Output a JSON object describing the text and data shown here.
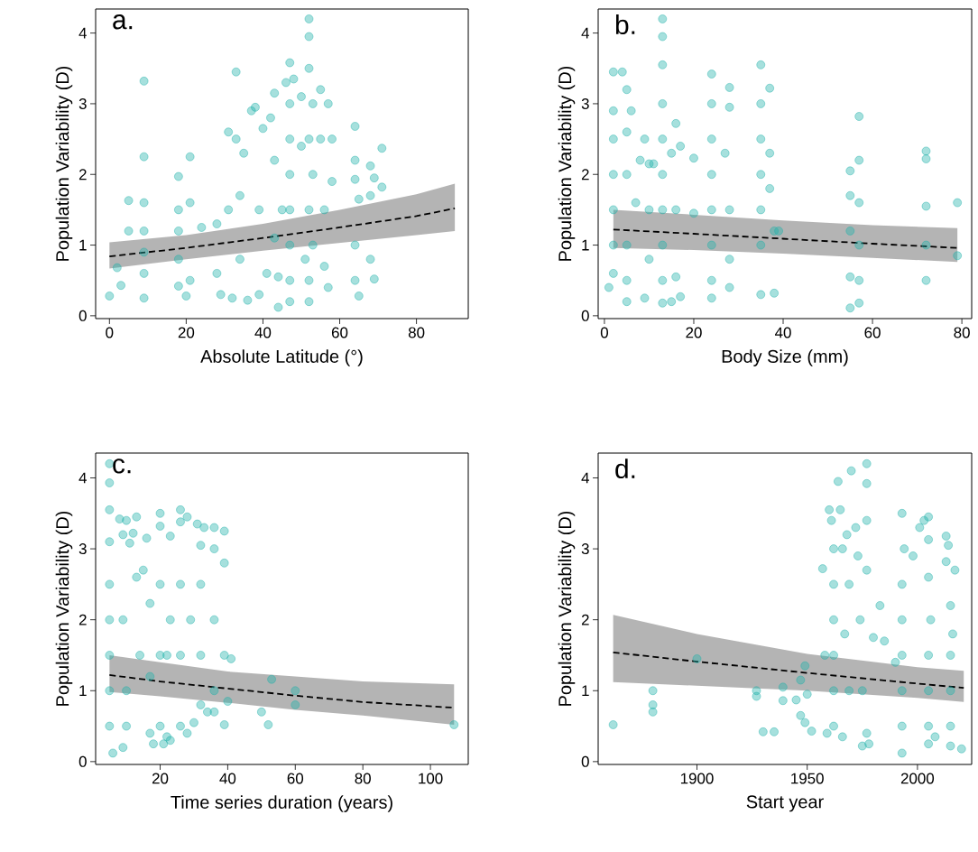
{
  "chart_data": [
    {
      "type": "scatter",
      "title": "a.",
      "xlabel": "Absolute Latitude (°)",
      "ylabel": "Population Variability (D)",
      "xlim": [
        -3.6,
        93.5
      ],
      "ylim": [
        -0.04,
        4.34
      ],
      "xticks": [
        0,
        20,
        40,
        60,
        80
      ],
      "yticks": [
        0,
        1,
        2,
        3,
        4
      ],
      "series": [
        {
          "color": "#20b2aa",
          "x": [
            0,
            2,
            3,
            5,
            5,
            9,
            9,
            9,
            9,
            9,
            9,
            9,
            18,
            18,
            18,
            18,
            18,
            20,
            21,
            21,
            21,
            24,
            28,
            28,
            29,
            31,
            31,
            32,
            33,
            33,
            34,
            34,
            35,
            36,
            37,
            38,
            39,
            39,
            40,
            41,
            42,
            43,
            43,
            43,
            44,
            44,
            45,
            46,
            47,
            47,
            47,
            47,
            47,
            47,
            47,
            47,
            48,
            50,
            50,
            51,
            52,
            52,
            52,
            53,
            52,
            53,
            52,
            53,
            52,
            52,
            55,
            55,
            56,
            56,
            57,
            57,
            58,
            58,
            64,
            64,
            64,
            64,
            64,
            65,
            65,
            68,
            68,
            68,
            69,
            69,
            71,
            71
          ],
          "values": [
            0.28,
            0.68,
            0.43,
            1.63,
            1.2,
            3.32,
            2.25,
            1.6,
            1.2,
            0.9,
            0.6,
            0.25,
            1.97,
            1.5,
            1.2,
            0.8,
            0.42,
            0.28,
            2.25,
            1.6,
            0.5,
            1.25,
            1.3,
            0.6,
            0.3,
            2.6,
            1.5,
            0.25,
            3.45,
            2.5,
            1.7,
            0.8,
            2.3,
            0.22,
            2.9,
            2.95,
            1.5,
            0.3,
            2.65,
            0.6,
            2.8,
            3.15,
            2.2,
            1.1,
            0.55,
            0.12,
            1.5,
            3.3,
            3.58,
            3.0,
            2.5,
            2.0,
            1.5,
            1.0,
            0.5,
            0.2,
            3.35,
            3.1,
            2.4,
            0.8,
            4.2,
            3.95,
            3.5,
            3.0,
            2.5,
            2.0,
            1.5,
            1.0,
            0.5,
            0.2,
            3.2,
            2.5,
            1.5,
            0.7,
            3.0,
            0.4,
            2.5,
            1.9,
            2.68,
            2.2,
            1.93,
            1.0,
            0.5,
            0.28,
            1.65,
            2.12,
            1.7,
            0.8,
            1.95,
            0.52,
            2.37,
            1.82
          ]
        },
        {
          "type": "line",
          "color": "#000000",
          "line_style": "dashed",
          "marker": "none",
          "x": [
            0,
            20,
            40,
            60,
            80,
            90
          ],
          "values": [
            0.84,
            0.96,
            1.1,
            1.25,
            1.41,
            1.52
          ],
          "lower": [
            0.67,
            0.8,
            0.92,
            1.03,
            1.14,
            1.2
          ],
          "upper": [
            1.04,
            1.14,
            1.3,
            1.5,
            1.72,
            1.87
          ]
        }
      ]
    },
    {
      "type": "scatter",
      "title": "b.",
      "xlabel": "Body Size (mm)",
      "ylabel": "Population Variability (D)",
      "xlim": [
        -1.4,
        82.2
      ],
      "ylim": [
        -0.04,
        4.34
      ],
      "xticks": [
        0,
        20,
        40,
        60,
        80
      ],
      "yticks": [
        0,
        1,
        2,
        3,
        4
      ],
      "series": [
        {
          "color": "#20b2aa",
          "x": [
            1,
            2,
            2,
            2,
            2,
            2,
            2,
            2,
            4,
            5,
            5,
            5,
            5,
            5,
            5,
            6,
            7,
            8,
            9,
            9,
            10,
            10,
            10,
            11,
            13,
            13,
            13,
            13,
            13,
            13,
            13,
            13,
            13,
            13,
            15,
            15,
            16,
            16,
            16,
            17,
            17,
            20,
            20,
            24,
            24,
            24,
            24,
            24,
            24,
            24,
            24,
            28,
            28,
            27,
            28,
            28,
            28,
            35,
            35,
            35,
            35,
            35,
            35,
            35,
            37,
            37,
            37,
            38,
            38,
            39,
            55,
            55,
            55,
            55,
            55,
            57,
            57,
            57,
            57,
            57,
            57,
            72,
            72,
            72,
            72,
            72,
            79,
            79
          ],
          "values": [
            0.4,
            3.45,
            2.9,
            2.5,
            2.0,
            1.5,
            1.0,
            0.6,
            3.45,
            3.2,
            2.6,
            2.0,
            1.0,
            0.5,
            0.2,
            2.9,
            1.6,
            2.2,
            2.5,
            0.25,
            2.15,
            1.5,
            0.8,
            2.15,
            4.2,
            3.95,
            3.55,
            3.0,
            2.5,
            2.0,
            1.5,
            1.0,
            0.5,
            0.18,
            2.3,
            0.2,
            2.72,
            1.5,
            0.55,
            2.4,
            0.27,
            2.23,
            1.45,
            3.42,
            3.0,
            2.5,
            2.0,
            1.5,
            1.0,
            0.5,
            0.25,
            3.23,
            2.95,
            2.3,
            1.5,
            0.8,
            0.4,
            3.55,
            3.0,
            2.5,
            2.0,
            1.5,
            1.0,
            0.3,
            3.22,
            2.3,
            1.8,
            1.2,
            0.32,
            1.2,
            2.05,
            1.7,
            1.2,
            0.55,
            0.11,
            2.82,
            2.2,
            1.6,
            1.0,
            0.5,
            0.18,
            2.33,
            2.22,
            1.55,
            1.0,
            0.5,
            1.6,
            0.85
          ]
        },
        {
          "type": "line",
          "color": "#000000",
          "line_style": "dashed",
          "marker": "none",
          "x": [
            2,
            20,
            40,
            60,
            79
          ],
          "values": [
            1.22,
            1.16,
            1.09,
            1.02,
            0.96
          ],
          "lower": [
            0.96,
            0.93,
            0.88,
            0.82,
            0.76
          ],
          "upper": [
            1.5,
            1.43,
            1.35,
            1.28,
            1.24
          ]
        }
      ]
    },
    {
      "type": "scatter",
      "title": "c.",
      "xlabel": "Time series duration (years)",
      "ylabel": "Population Variability (D)",
      "xlim": [
        0.9,
        111.2
      ],
      "ylim": [
        -0.04,
        4.35
      ],
      "xticks": [
        20,
        40,
        60,
        80,
        100
      ],
      "yticks": [
        0,
        1,
        2,
        3,
        4
      ],
      "series": [
        {
          "color": "#20b2aa",
          "x": [
            5,
            5,
            5,
            5,
            5,
            5,
            5,
            5,
            5,
            6,
            8,
            9,
            9,
            9,
            10,
            10,
            10,
            11,
            12,
            13,
            13,
            14,
            15,
            16,
            17,
            17,
            17,
            18,
            20,
            20,
            20,
            20,
            20,
            21,
            22,
            22,
            23,
            23,
            23,
            26,
            26,
            26,
            26,
            26,
            28,
            28,
            29,
            30,
            31,
            32,
            32,
            32,
            32,
            33,
            34,
            36,
            36,
            36,
            36,
            36,
            39,
            39,
            39,
            39,
            41,
            40,
            50,
            52,
            53,
            60,
            60,
            107
          ],
          "values": [
            4.2,
            3.93,
            3.55,
            3.1,
            2.5,
            2.0,
            1.5,
            1.0,
            0.5,
            0.12,
            3.42,
            3.2,
            2.0,
            0.2,
            3.4,
            1.0,
            0.5,
            3.08,
            3.22,
            3.45,
            2.6,
            1.5,
            2.7,
            3.15,
            2.23,
            1.2,
            0.4,
            0.25,
            3.5,
            3.32,
            2.5,
            1.5,
            0.5,
            0.25,
            1.5,
            0.35,
            3.18,
            2.0,
            0.3,
            3.55,
            3.38,
            2.5,
            1.5,
            0.5,
            3.45,
            0.4,
            2.0,
            0.55,
            3.35,
            3.05,
            2.5,
            1.5,
            0.8,
            3.3,
            0.7,
            3.3,
            3.0,
            2.0,
            1.0,
            0.7,
            3.25,
            2.8,
            1.5,
            0.52,
            1.45,
            0.85,
            0.7,
            0.52,
            1.16,
            1.0,
            0.8,
            0.52
          ]
        },
        {
          "type": "line",
          "color": "#000000",
          "line_style": "dashed",
          "marker": "none",
          "x": [
            5,
            20,
            40,
            60,
            80,
            107
          ],
          "values": [
            1.22,
            1.13,
            1.03,
            0.93,
            0.84,
            0.76
          ],
          "lower": [
            0.98,
            0.92,
            0.83,
            0.73,
            0.65,
            0.52
          ],
          "upper": [
            1.5,
            1.4,
            1.27,
            1.2,
            1.13,
            1.09
          ]
        }
      ]
    },
    {
      "type": "scatter",
      "title": "d.",
      "xlabel": "Start year",
      "ylabel": "Population Variability (D)",
      "xlim": [
        1855.2,
        2024.6
      ],
      "ylim": [
        -0.04,
        4.35
      ],
      "xticks": [
        1900,
        1950,
        2000
      ],
      "yticks": [
        0,
        1,
        2,
        3,
        4
      ],
      "series": [
        {
          "color": "#20b2aa",
          "x": [
            1862,
            1880,
            1880,
            1880,
            1900,
            1927,
            1927,
            1930,
            1935,
            1939,
            1939,
            1945,
            1947,
            1947,
            1949,
            1949,
            1950,
            1952,
            1957,
            1958,
            1959,
            1960,
            1961,
            1962,
            1962,
            1962,
            1962,
            1962,
            1962,
            1964,
            1965,
            1966,
            1966,
            1967,
            1968,
            1969,
            1969,
            1970,
            1972,
            1973,
            1974,
            1975,
            1975,
            1977,
            1977,
            1977,
            1977,
            1977,
            1978,
            1980,
            1983,
            1985,
            1990,
            1993,
            1994,
            1993,
            1993,
            1993,
            1993,
            1993,
            1993,
            1998,
            2001,
            2003,
            2005,
            2005,
            2005,
            2006,
            2005,
            2005,
            2005,
            2005,
            2008,
            2013,
            2014,
            2013,
            2017,
            2015,
            2016,
            2015,
            2015,
            2015,
            2015,
            2020
          ],
          "values": [
            0.52,
            1.0,
            0.8,
            0.7,
            1.45,
            1.0,
            0.92,
            0.42,
            0.42,
            1.05,
            0.86,
            0.87,
            0.65,
            1.15,
            1.35,
            0.55,
            0.95,
            0.43,
            2.72,
            1.5,
            0.4,
            3.55,
            3.4,
            3.0,
            2.5,
            2.0,
            1.5,
            1.0,
            0.5,
            3.95,
            3.55,
            3.0,
            0.35,
            1.8,
            3.2,
            2.5,
            1.0,
            4.1,
            3.3,
            2.9,
            2.0,
            1.0,
            0.22,
            4.2,
            3.92,
            3.4,
            2.7,
            0.4,
            0.25,
            1.75,
            2.2,
            1.7,
            1.4,
            3.5,
            3.0,
            2.5,
            2.0,
            1.5,
            1.0,
            0.5,
            0.12,
            2.9,
            3.3,
            3.4,
            3.45,
            3.13,
            2.6,
            2.0,
            1.5,
            1.0,
            0.5,
            0.25,
            0.35,
            3.18,
            3.05,
            2.82,
            2.7,
            2.2,
            1.8,
            1.5,
            1.0,
            0.5,
            0.22,
            0.18
          ]
        },
        {
          "type": "line",
          "color": "#000000",
          "line_style": "dashed",
          "marker": "none",
          "x": [
            1862,
            1900,
            1950,
            2000,
            2021
          ],
          "values": [
            1.54,
            1.41,
            1.25,
            1.1,
            1.04
          ],
          "lower": [
            1.12,
            1.07,
            1.0,
            0.9,
            0.84
          ],
          "upper": [
            2.07,
            1.8,
            1.52,
            1.33,
            1.28
          ]
        }
      ]
    }
  ]
}
